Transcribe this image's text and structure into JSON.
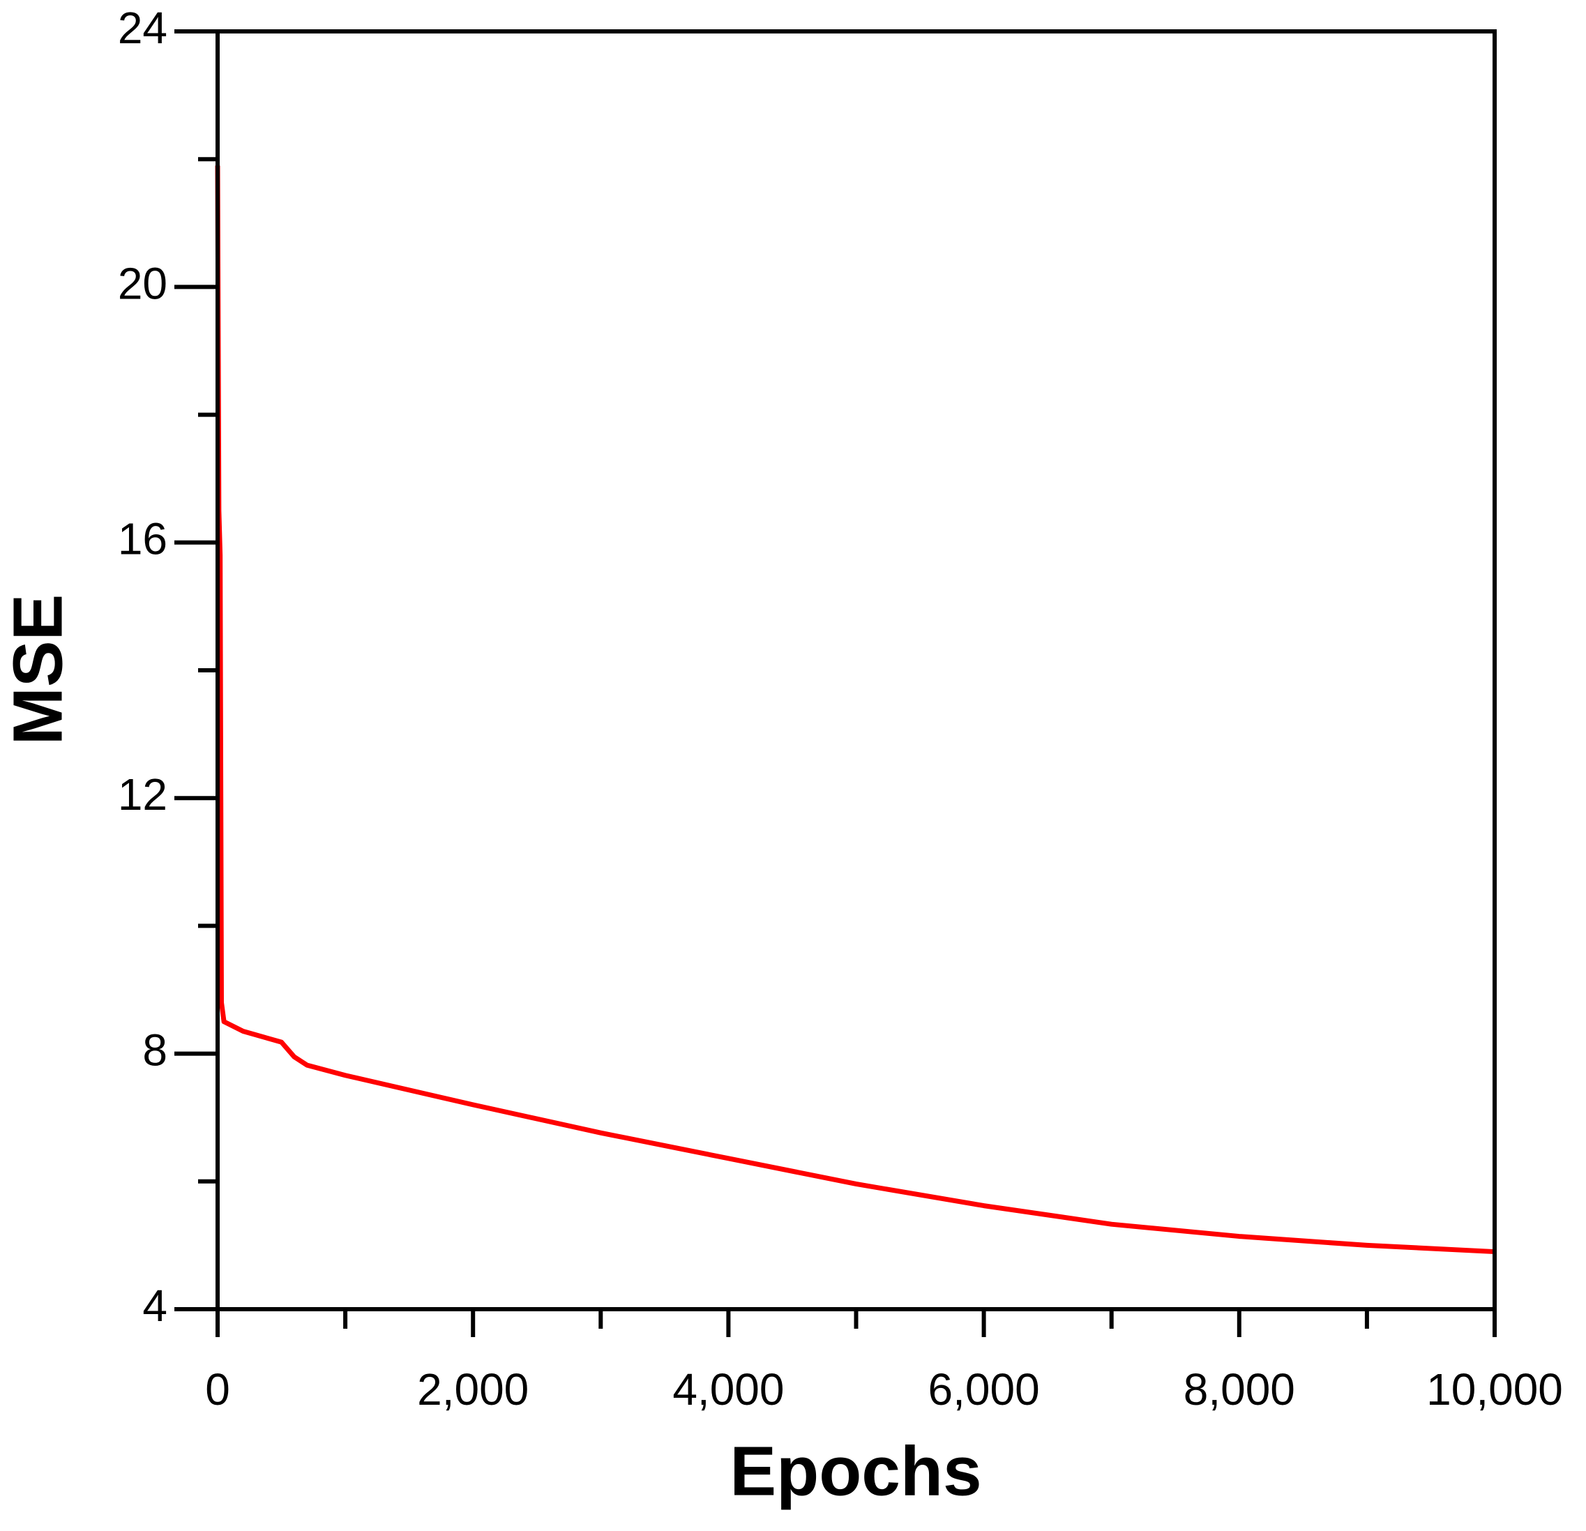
{
  "chart_data": {
    "type": "line",
    "x_label": "Epochs",
    "y_label": "MSE",
    "xlim": [
      0,
      10000
    ],
    "ylim": [
      4,
      24
    ],
    "xticks": [
      0,
      {
        "value": 2000,
        "label": "2,000"
      },
      {
        "value": 4000,
        "label": "4,000"
      },
      {
        "value": 6000,
        "label": "6,000"
      },
      {
        "value": 8000,
        "label": "8,000"
      },
      {
        "value": 10000,
        "label": "10,000"
      }
    ],
    "yticks": [
      4,
      8,
      12,
      16,
      20,
      24
    ],
    "grid": false,
    "series": [
      {
        "color": "#ff0000",
        "x": [
          0,
          10,
          20,
          30,
          50,
          200,
          500,
          600,
          700,
          1000,
          2000,
          3000,
          4000,
          5000,
          6000,
          7000,
          8000,
          9000,
          10000
        ],
        "values": [
          21.9,
          16.5,
          15.8,
          8.8,
          8.5,
          8.35,
          8.18,
          7.95,
          7.82,
          7.66,
          7.2,
          6.76,
          6.36,
          5.96,
          5.62,
          5.33,
          5.14,
          5.0,
          4.9
        ]
      }
    ]
  }
}
